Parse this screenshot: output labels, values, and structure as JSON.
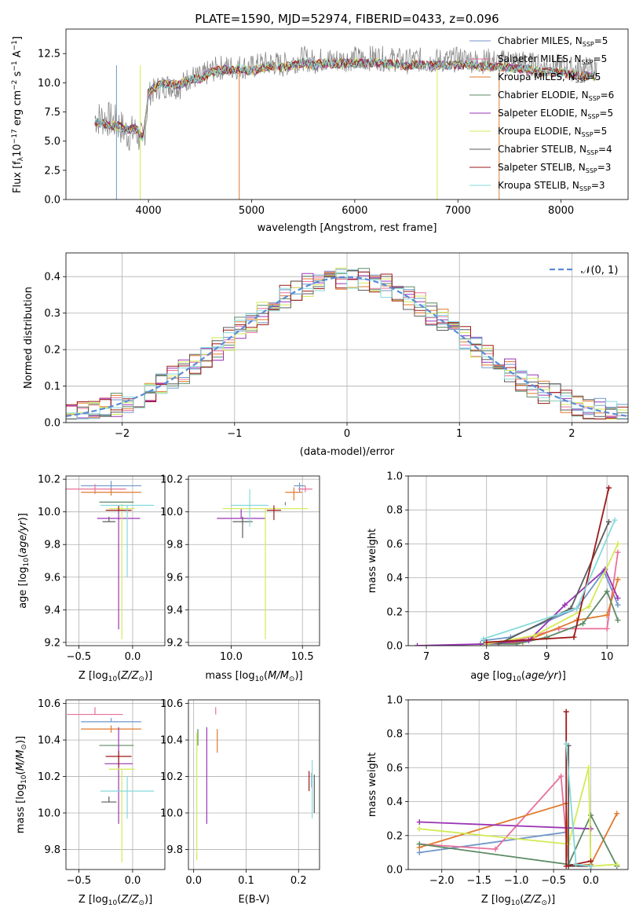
{
  "title": "PLATE=1590, MJD=52974, FIBERID=0433, z=0.096",
  "colors": {
    "Chabrier MILES": "#6f96c8",
    "Salpeter MILES": "#e9709a",
    "Kroupa MILES": "#e07a2e",
    "Chabrier ELODIE": "#5e8a66",
    "Salpeter ELODIE": "#9a35b5",
    "Kroupa ELODIE": "#d4ea54",
    "Chabrier STELIB": "#5c5c5c",
    "Salpeter STELIB": "#9e1818",
    "Kroupa STELIB": "#86dada",
    "normal": "#5a8bd6"
  },
  "chart_data": [
    {
      "type": "line",
      "id": "spectrum",
      "title": "PLATE=1590, MJD=52974, FIBERID=0433, z=0.096",
      "xlabel": "wavelength [Angstrom, rest frame]",
      "ylabel": "Flux [f_λ 10^-17 erg cm^-2 s^-1 A^-1]",
      "xlim": [
        3200,
        8650
      ],
      "ylim": [
        0,
        14.6
      ],
      "xticks": [
        4000,
        5000,
        6000,
        7000,
        8000
      ],
      "yticks": [
        "0.0",
        "2.5",
        "5.0",
        "7.5",
        "10.0",
        "12.5"
      ],
      "legend_position": "right",
      "data_x": [
        3480,
        3600,
        3700,
        3800,
        3880,
        3950,
        4000,
        4100,
        4200,
        4300,
        4400,
        4500,
        4600,
        4700,
        4800,
        4900,
        5000,
        5100,
        5200,
        5300,
        5400,
        5500,
        5600,
        5700,
        5800,
        5900,
        6000,
        6100,
        6200,
        6300,
        6400,
        6500,
        6600,
        6700,
        6800,
        6900,
        7000,
        7100,
        7200,
        7300,
        7400,
        7500,
        7600,
        7700,
        7800,
        7900,
        8000,
        8100,
        8200,
        8350
      ],
      "data_y": [
        7.0,
        6.9,
        6.5,
        5.6,
        5.8,
        4.8,
        9.0,
        9.6,
        9.8,
        9.6,
        10.5,
        10.4,
        11.0,
        11.3,
        11.3,
        11.4,
        11.3,
        11.6,
        11.7,
        11.5,
        11.8,
        12.1,
        11.8,
        12.0,
        11.9,
        12.0,
        12.1,
        12.0,
        12.2,
        12.0,
        12.0,
        11.8,
        12.0,
        11.8,
        11.9,
        11.9,
        12.0,
        12.0,
        11.8,
        11.9,
        11.7,
        11.9,
        11.8,
        11.6,
        11.4,
        11.4,
        11.4,
        11.2,
        11.2,
        11.2
      ],
      "model_y": [
        6.6,
        6.4,
        6.3,
        6.0,
        6.1,
        5.2,
        9.2,
        9.8,
        9.9,
        9.8,
        10.3,
        10.3,
        10.9,
        11.1,
        11.1,
        11.2,
        11.0,
        11.3,
        11.4,
        11.3,
        11.5,
        11.7,
        11.5,
        11.7,
        11.6,
        11.7,
        11.7,
        11.6,
        11.8,
        11.6,
        11.6,
        11.4,
        11.6,
        11.5,
        11.5,
        11.5,
        11.5,
        11.6,
        11.4,
        11.4,
        11.3,
        11.3,
        11.2,
        11.1,
        10.9,
        10.9,
        10.9,
        10.7,
        10.6,
        10.6
      ],
      "legend": [
        {
          "label": "Chabrier MILES, N",
          "sub": "SSP",
          "tail": "=5"
        },
        {
          "label": "Salpeter MILES, N",
          "sub": "SSP",
          "tail": "=5"
        },
        {
          "label": "Kroupa MILES, N",
          "sub": "SSP",
          "tail": "=5"
        },
        {
          "label": "Chabrier ELODIE, N",
          "sub": "SSP",
          "tail": "=6"
        },
        {
          "label": "Salpeter ELODIE, N",
          "sub": "SSP",
          "tail": "=5"
        },
        {
          "label": "Kroupa ELODIE, N",
          "sub": "SSP",
          "tail": "=5"
        },
        {
          "label": "Chabrier STELIB, N",
          "sub": "SSP",
          "tail": "=4"
        },
        {
          "label": "Salpeter STELIB, N",
          "sub": "SSP",
          "tail": "=3"
        },
        {
          "label": "Kroupa STELIB, N",
          "sub": "SSP",
          "tail": "=3"
        }
      ]
    },
    {
      "type": "bar",
      "id": "residuals",
      "xlabel": "(data-model)/error",
      "ylabel": "Normed distribution",
      "xlim": [
        -2.5,
        2.5
      ],
      "ylim": [
        0,
        0.465
      ],
      "xticks": [
        -2,
        -1,
        0,
        1,
        2
      ],
      "yticks": [
        "0.0",
        "0.1",
        "0.2",
        "0.3",
        "0.4"
      ],
      "grid": true,
      "legend": "𝒩(0, 1)",
      "legend_position": "upper right",
      "bin_width": 0.1,
      "bin_start": -2.5,
      "normal_mean": 0,
      "normal_sigma": 1
    },
    {
      "type": "scatter",
      "id": "age-vs-Z",
      "xlabel": "Z [log10(Z/Z⊙)]",
      "ylabel": "age [log10(age/yr)]",
      "xlim": [
        -0.62,
        0.3
      ],
      "ylim": [
        9.18,
        10.22
      ],
      "xticks": [
        "-0.5",
        "0.0"
      ],
      "yticks": [
        "9.2",
        "9.4",
        "9.6",
        "9.8",
        "10.0",
        "10.2"
      ],
      "points": [
        {
          "model": "Chabrier MILES",
          "x": -0.2,
          "xerr": 0.28,
          "y": 10.16,
          "yerr": [
            0.03,
            0.03
          ]
        },
        {
          "model": "Salpeter MILES",
          "x": -0.35,
          "xerr": 0.29,
          "y": 10.14,
          "yerr": [
            0.03,
            0.03
          ]
        },
        {
          "model": "Kroupa MILES",
          "x": -0.2,
          "xerr": 0.28,
          "y": 10.12,
          "yerr": [
            0.02,
            0.02
          ]
        },
        {
          "model": "Chabrier ELODIE",
          "x": -0.15,
          "xerr": 0.16,
          "y": 10.06,
          "yerr": [
            0.0,
            0.0
          ]
        },
        {
          "model": "Salpeter ELODIE",
          "x": -0.13,
          "xerr": 0.2,
          "y": 9.96,
          "yerr": [
            0.68,
            0.06
          ]
        },
        {
          "model": "Kroupa ELODIE",
          "x": -0.1,
          "xerr": 0.12,
          "y": 10.02,
          "yerr": [
            0.8,
            0.03
          ]
        },
        {
          "model": "Chabrier STELIB",
          "x": -0.22,
          "xerr": 0.06,
          "y": 9.94,
          "yerr": [
            0.0,
            0.03
          ]
        },
        {
          "model": "Salpeter STELIB",
          "x": -0.13,
          "xerr": 0.12,
          "y": 10.01,
          "yerr": [
            0.0,
            0.03
          ]
        },
        {
          "model": "Kroupa STELIB",
          "x": -0.05,
          "xerr": 0.25,
          "y": 10.04,
          "yerr": [
            0.44,
            0.0
          ]
        }
      ]
    },
    {
      "type": "scatter",
      "id": "age-vs-mass",
      "xlabel": "mass [log10(M/M⊙)]",
      "ylabel": "",
      "xlim": [
        9.7,
        10.62
      ],
      "ylim": [
        9.18,
        10.22
      ],
      "xticks": [
        "10.0",
        "10.5"
      ],
      "yticks": [
        "9.2",
        "9.4",
        "9.6",
        "9.8",
        "10.0",
        "10.2"
      ],
      "points": [
        {
          "model": "Chabrier MILES",
          "x": 10.48,
          "xerr": 0.04,
          "y": 10.16,
          "yerr": [
            0.04,
            0.02
          ]
        },
        {
          "model": "Salpeter MILES",
          "x": 10.52,
          "xerr": 0.05,
          "y": 10.14,
          "yerr": [
            0.02,
            0.02
          ]
        },
        {
          "model": "Kroupa MILES",
          "x": 10.44,
          "xerr": 0.06,
          "y": 10.12,
          "yerr": [
            0.05,
            0.03
          ]
        },
        {
          "model": "Chabrier ELODIE",
          "x": 10.38,
          "xerr": 0.0,
          "y": 10.06,
          "yerr": [
            0.02,
            0.0
          ]
        },
        {
          "model": "Salpeter ELODIE",
          "x": 10.07,
          "xerr": 0.17,
          "y": 9.96,
          "yerr": [
            0.0,
            0.06
          ]
        },
        {
          "model": "Kroupa ELODIE",
          "x": 10.24,
          "xerr": 0.3,
          "y": 10.02,
          "yerr": [
            0.8,
            0.0
          ]
        },
        {
          "model": "Chabrier STELIB",
          "x": 10.08,
          "xerr": 0.07,
          "y": 9.94,
          "yerr": [
            0.1,
            0.03
          ]
        },
        {
          "model": "Salpeter STELIB",
          "x": 10.3,
          "xerr": 0.05,
          "y": 10.01,
          "yerr": [
            0.06,
            0.03
          ]
        },
        {
          "model": "Kroupa STELIB",
          "x": 10.13,
          "xerr": 0.13,
          "y": 10.04,
          "yerr": [
            0.13,
            0.1
          ]
        }
      ]
    },
    {
      "type": "line",
      "id": "weight-vs-age",
      "xlabel": "age [log10(age/yr)]",
      "ylabel": "mass weight",
      "xlim": [
        6.7,
        10.35
      ],
      "ylim": [
        0,
        1.0
      ],
      "xticks": [
        "7",
        "8",
        "9",
        "10"
      ],
      "yticks": [
        "0.0",
        "0.2",
        "0.4",
        "0.6",
        "0.8",
        "1.0"
      ],
      "grid": true,
      "series": [
        {
          "model": "Chabrier MILES",
          "x": [
            7.95,
            8.4,
            9.5,
            9.95,
            10.18
          ],
          "y": [
            0.03,
            0.05,
            0.22,
            0.44,
            0.24
          ]
        },
        {
          "model": "Salpeter MILES",
          "x": [
            8.0,
            8.5,
            9.2,
            10.0,
            10.18
          ],
          "y": [
            0.01,
            0.03,
            0.1,
            0.1,
            0.55
          ]
        },
        {
          "model": "Kroupa MILES",
          "x": [
            8.0,
            8.6,
            9.5,
            10.0,
            10.18
          ],
          "y": [
            0.01,
            0.02,
            0.15,
            0.18,
            0.39
          ]
        },
        {
          "model": "Chabrier ELODIE",
          "x": [
            7.9,
            8.5,
            9.0,
            9.6,
            10.0,
            10.18
          ],
          "y": [
            0.01,
            0.01,
            0.05,
            0.13,
            0.32,
            0.15
          ]
        },
        {
          "model": "Salpeter ELODIE",
          "x": [
            6.85,
            8.0,
            8.7,
            9.3,
            9.97,
            10.18
          ],
          "y": [
            0.0,
            0.01,
            0.03,
            0.24,
            0.45,
            0.28
          ]
        },
        {
          "model": "Kroupa ELODIE",
          "x": [
            8.0,
            8.8,
            9.7,
            10.18
          ],
          "y": [
            0.01,
            0.06,
            0.23,
            0.6
          ]
        },
        {
          "model": "Chabrier STELIB",
          "x": [
            8.2,
            9.4,
            10.03
          ],
          "y": [
            0.01,
            0.22,
            0.73
          ]
        },
        {
          "model": "Salpeter STELIB",
          "x": [
            8.0,
            9.45,
            10.03
          ],
          "y": [
            0.02,
            0.05,
            0.93
          ]
        },
        {
          "model": "Kroupa STELIB",
          "x": [
            7.95,
            9.5,
            10.13
          ],
          "y": [
            0.04,
            0.22,
            0.74
          ]
        }
      ]
    },
    {
      "type": "scatter",
      "id": "mass-vs-Z",
      "xlabel": "Z [log10(Z/Z⊙)]",
      "ylabel": "mass [log10(M/M⊙)]",
      "xlim": [
        -0.62,
        0.3
      ],
      "ylim": [
        9.69,
        10.62
      ],
      "xticks": [
        "-0.5",
        "0.0"
      ],
      "yticks": [
        "9.8",
        "10.0",
        "10.2",
        "10.4",
        "10.6"
      ],
      "points": [
        {
          "model": "Chabrier MILES",
          "x": -0.2,
          "xerr": 0.28,
          "y": 10.5,
          "yerr": [
            0.0,
            0.02
          ]
        },
        {
          "model": "Salpeter MILES",
          "x": -0.35,
          "xerr": 0.26,
          "y": 10.54,
          "yerr": [
            0.0,
            0.04
          ]
        },
        {
          "model": "Kroupa MILES",
          "x": -0.2,
          "xerr": 0.28,
          "y": 10.46,
          "yerr": [
            0.02,
            0.02
          ]
        },
        {
          "model": "Chabrier ELODIE",
          "x": -0.15,
          "xerr": 0.16,
          "y": 10.37,
          "yerr": [
            0.0,
            0.0
          ]
        },
        {
          "model": "Salpeter ELODIE",
          "x": -0.13,
          "xerr": 0.13,
          "y": 10.27,
          "yerr": [
            0.33,
            0.2
          ]
        },
        {
          "model": "Kroupa ELODIE",
          "x": -0.1,
          "xerr": 0.12,
          "y": 10.24,
          "yerr": [
            0.51,
            0.0
          ]
        },
        {
          "model": "Chabrier STELIB",
          "x": -0.22,
          "xerr": 0.07,
          "y": 10.06,
          "yerr": [
            0.0,
            0.03
          ]
        },
        {
          "model": "Salpeter STELIB",
          "x": -0.13,
          "xerr": 0.12,
          "y": 10.31,
          "yerr": [
            0.06,
            0.03
          ]
        },
        {
          "model": "Kroupa STELIB",
          "x": -0.05,
          "xerr": 0.25,
          "y": 10.12,
          "yerr": [
            0.15,
            0.08
          ]
        }
      ]
    },
    {
      "type": "scatter",
      "id": "mass-vs-ebv",
      "xlabel": "E(B-V)",
      "ylabel": "",
      "xlim": [
        -0.01,
        0.24
      ],
      "ylim": [
        9.69,
        10.62
      ],
      "xticks": [
        "0.0",
        "0.1",
        "0.2"
      ],
      "yticks": [
        "9.8",
        "10.0",
        "10.2",
        "10.4",
        "10.6"
      ],
      "points": [
        {
          "model": "Chabrier MILES",
          "x": 0.225,
          "xerr": 0,
          "y": 10.18,
          "yerr": [
            0.04,
            0.04
          ]
        },
        {
          "model": "Salpeter MILES",
          "x": 0.042,
          "xerr": 0,
          "y": 10.54,
          "yerr": [
            0.0,
            0.04
          ]
        },
        {
          "model": "Kroupa MILES",
          "x": 0.045,
          "xerr": 0,
          "y": 10.46,
          "yerr": [
            0.13,
            0.0
          ]
        },
        {
          "model": "Chabrier ELODIE",
          "x": 0.008,
          "xerr": 0,
          "y": 10.37,
          "yerr": [
            0.0,
            0.09
          ]
        },
        {
          "model": "Salpeter ELODIE",
          "x": 0.025,
          "xerr": 0,
          "y": 10.27,
          "yerr": [
            0.33,
            0.2
          ]
        },
        {
          "model": "Kroupa ELODIE",
          "x": 0.006,
          "xerr": 0,
          "y": 10.24,
          "yerr": [
            0.5,
            0.2
          ]
        },
        {
          "model": "Chabrier STELIB",
          "x": 0.23,
          "xerr": 0,
          "y": 10.06,
          "yerr": [
            0.06,
            0.15
          ]
        },
        {
          "model": "Salpeter STELIB",
          "x": 0.22,
          "xerr": 0,
          "y": 10.2,
          "yerr": [
            0.08,
            0.03
          ]
        },
        {
          "model": "Kroupa STELIB",
          "x": 0.226,
          "xerr": 0,
          "y": 10.12,
          "yerr": [
            0.15,
            0.17
          ]
        }
      ]
    },
    {
      "type": "line",
      "id": "weight-vs-Z",
      "xlabel": "Z [log10(Z/Z⊙)]",
      "ylabel": "mass weight",
      "xlim": [
        -2.45,
        0.5
      ],
      "ylim": [
        0,
        1.0
      ],
      "xticks": [
        "-2.0",
        "-1.5",
        "-1.0",
        "-0.5",
        "0.0"
      ],
      "yticks": [
        "0.0",
        "0.2",
        "0.4",
        "0.6",
        "0.8",
        "1.0"
      ],
      "grid": true,
      "series": [
        {
          "model": "Chabrier MILES",
          "x": [
            -2.3,
            -0.33,
            -0.3,
            0.0
          ],
          "y": [
            0.1,
            0.22,
            0.03,
            0.02
          ]
        },
        {
          "model": "Salpeter MILES",
          "x": [
            -2.3,
            -1.28,
            -0.4,
            -0.3,
            0.0
          ],
          "y": [
            0.15,
            0.12,
            0.55,
            0.02,
            0.02
          ]
        },
        {
          "model": "Kroupa MILES",
          "x": [
            -2.3,
            -0.33,
            -0.3,
            0.0,
            0.35
          ],
          "y": [
            0.13,
            0.39,
            0.02,
            0.03,
            0.33
          ]
        },
        {
          "model": "Chabrier ELODIE",
          "x": [
            -2.3,
            -0.3,
            0.0,
            0.35
          ],
          "y": [
            0.15,
            0.03,
            0.32,
            0.02
          ]
        },
        {
          "model": "Salpeter ELODIE",
          "x": [
            -2.3,
            0.0
          ],
          "y": [
            0.28,
            0.24
          ]
        },
        {
          "model": "Kroupa ELODIE",
          "x": [
            -2.3,
            -0.3,
            -0.03,
            0.0,
            0.35
          ],
          "y": [
            0.24,
            0.15,
            0.6,
            0.02,
            0.03
          ]
        },
        {
          "model": "Chabrier STELIB",
          "x": [
            -0.3,
            -0.3,
            0.0
          ],
          "y": [
            0.73,
            0.02,
            0.02
          ]
        },
        {
          "model": "Salpeter STELIB",
          "x": [
            -0.33,
            -0.33,
            0.0
          ],
          "y": [
            0.93,
            0.02,
            0.05
          ]
        },
        {
          "model": "Kroupa STELIB",
          "x": [
            -0.33,
            -0.2,
            0.0
          ],
          "y": [
            0.74,
            0.03,
            0.02
          ]
        }
      ]
    }
  ]
}
